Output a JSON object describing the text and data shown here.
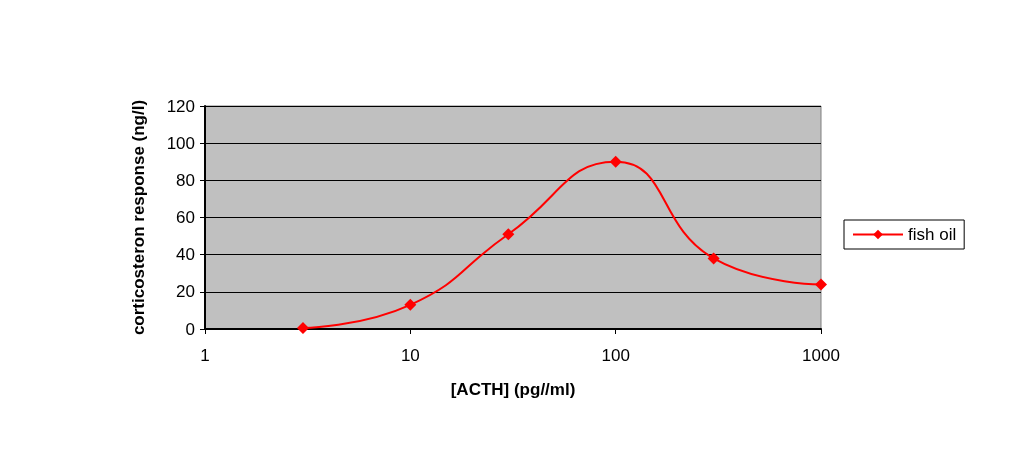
{
  "chart_data": {
    "type": "line",
    "xlabel": "[ACTH] (pg//ml)",
    "ylabel": "corticosteron response (ng/l)",
    "x": [
      3,
      10,
      30,
      100,
      300,
      1000
    ],
    "series": [
      {
        "name": "fish oil",
        "color": "#ff0000",
        "values": [
          0.5,
          13,
          51,
          90,
          38,
          24
        ]
      }
    ],
    "log": "x",
    "xlim": [
      1,
      1000
    ],
    "xticks": [
      1,
      10,
      100,
      1000
    ],
    "ylim": [
      0,
      120
    ],
    "yticks": [
      0,
      20,
      40,
      60,
      80,
      100,
      120
    ],
    "grid": "y",
    "legend": "right",
    "marker": "diamond",
    "line_style": "solid"
  }
}
